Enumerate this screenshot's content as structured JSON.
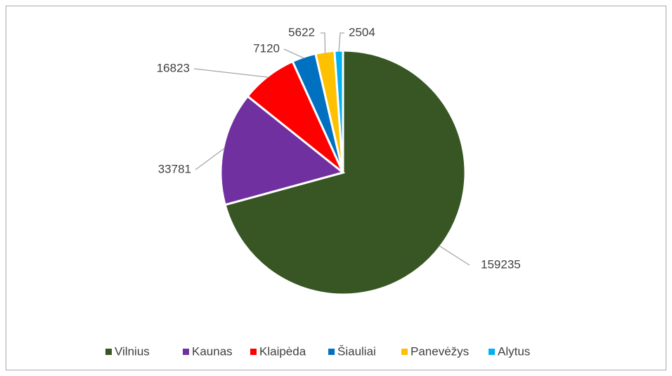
{
  "chart_data": {
    "type": "pie",
    "categories": [
      "Vilnius",
      "Kaunas",
      "Klaipėda",
      "Šiauliai",
      "Panevėžys",
      "Alytus"
    ],
    "values": [
      159235,
      33781,
      16823,
      7120,
      5622,
      2504
    ],
    "colors": [
      "#375623",
      "#7030a0",
      "#ff0000",
      "#0070c0",
      "#ffc000",
      "#00b0f0"
    ],
    "legend": "bottom"
  }
}
